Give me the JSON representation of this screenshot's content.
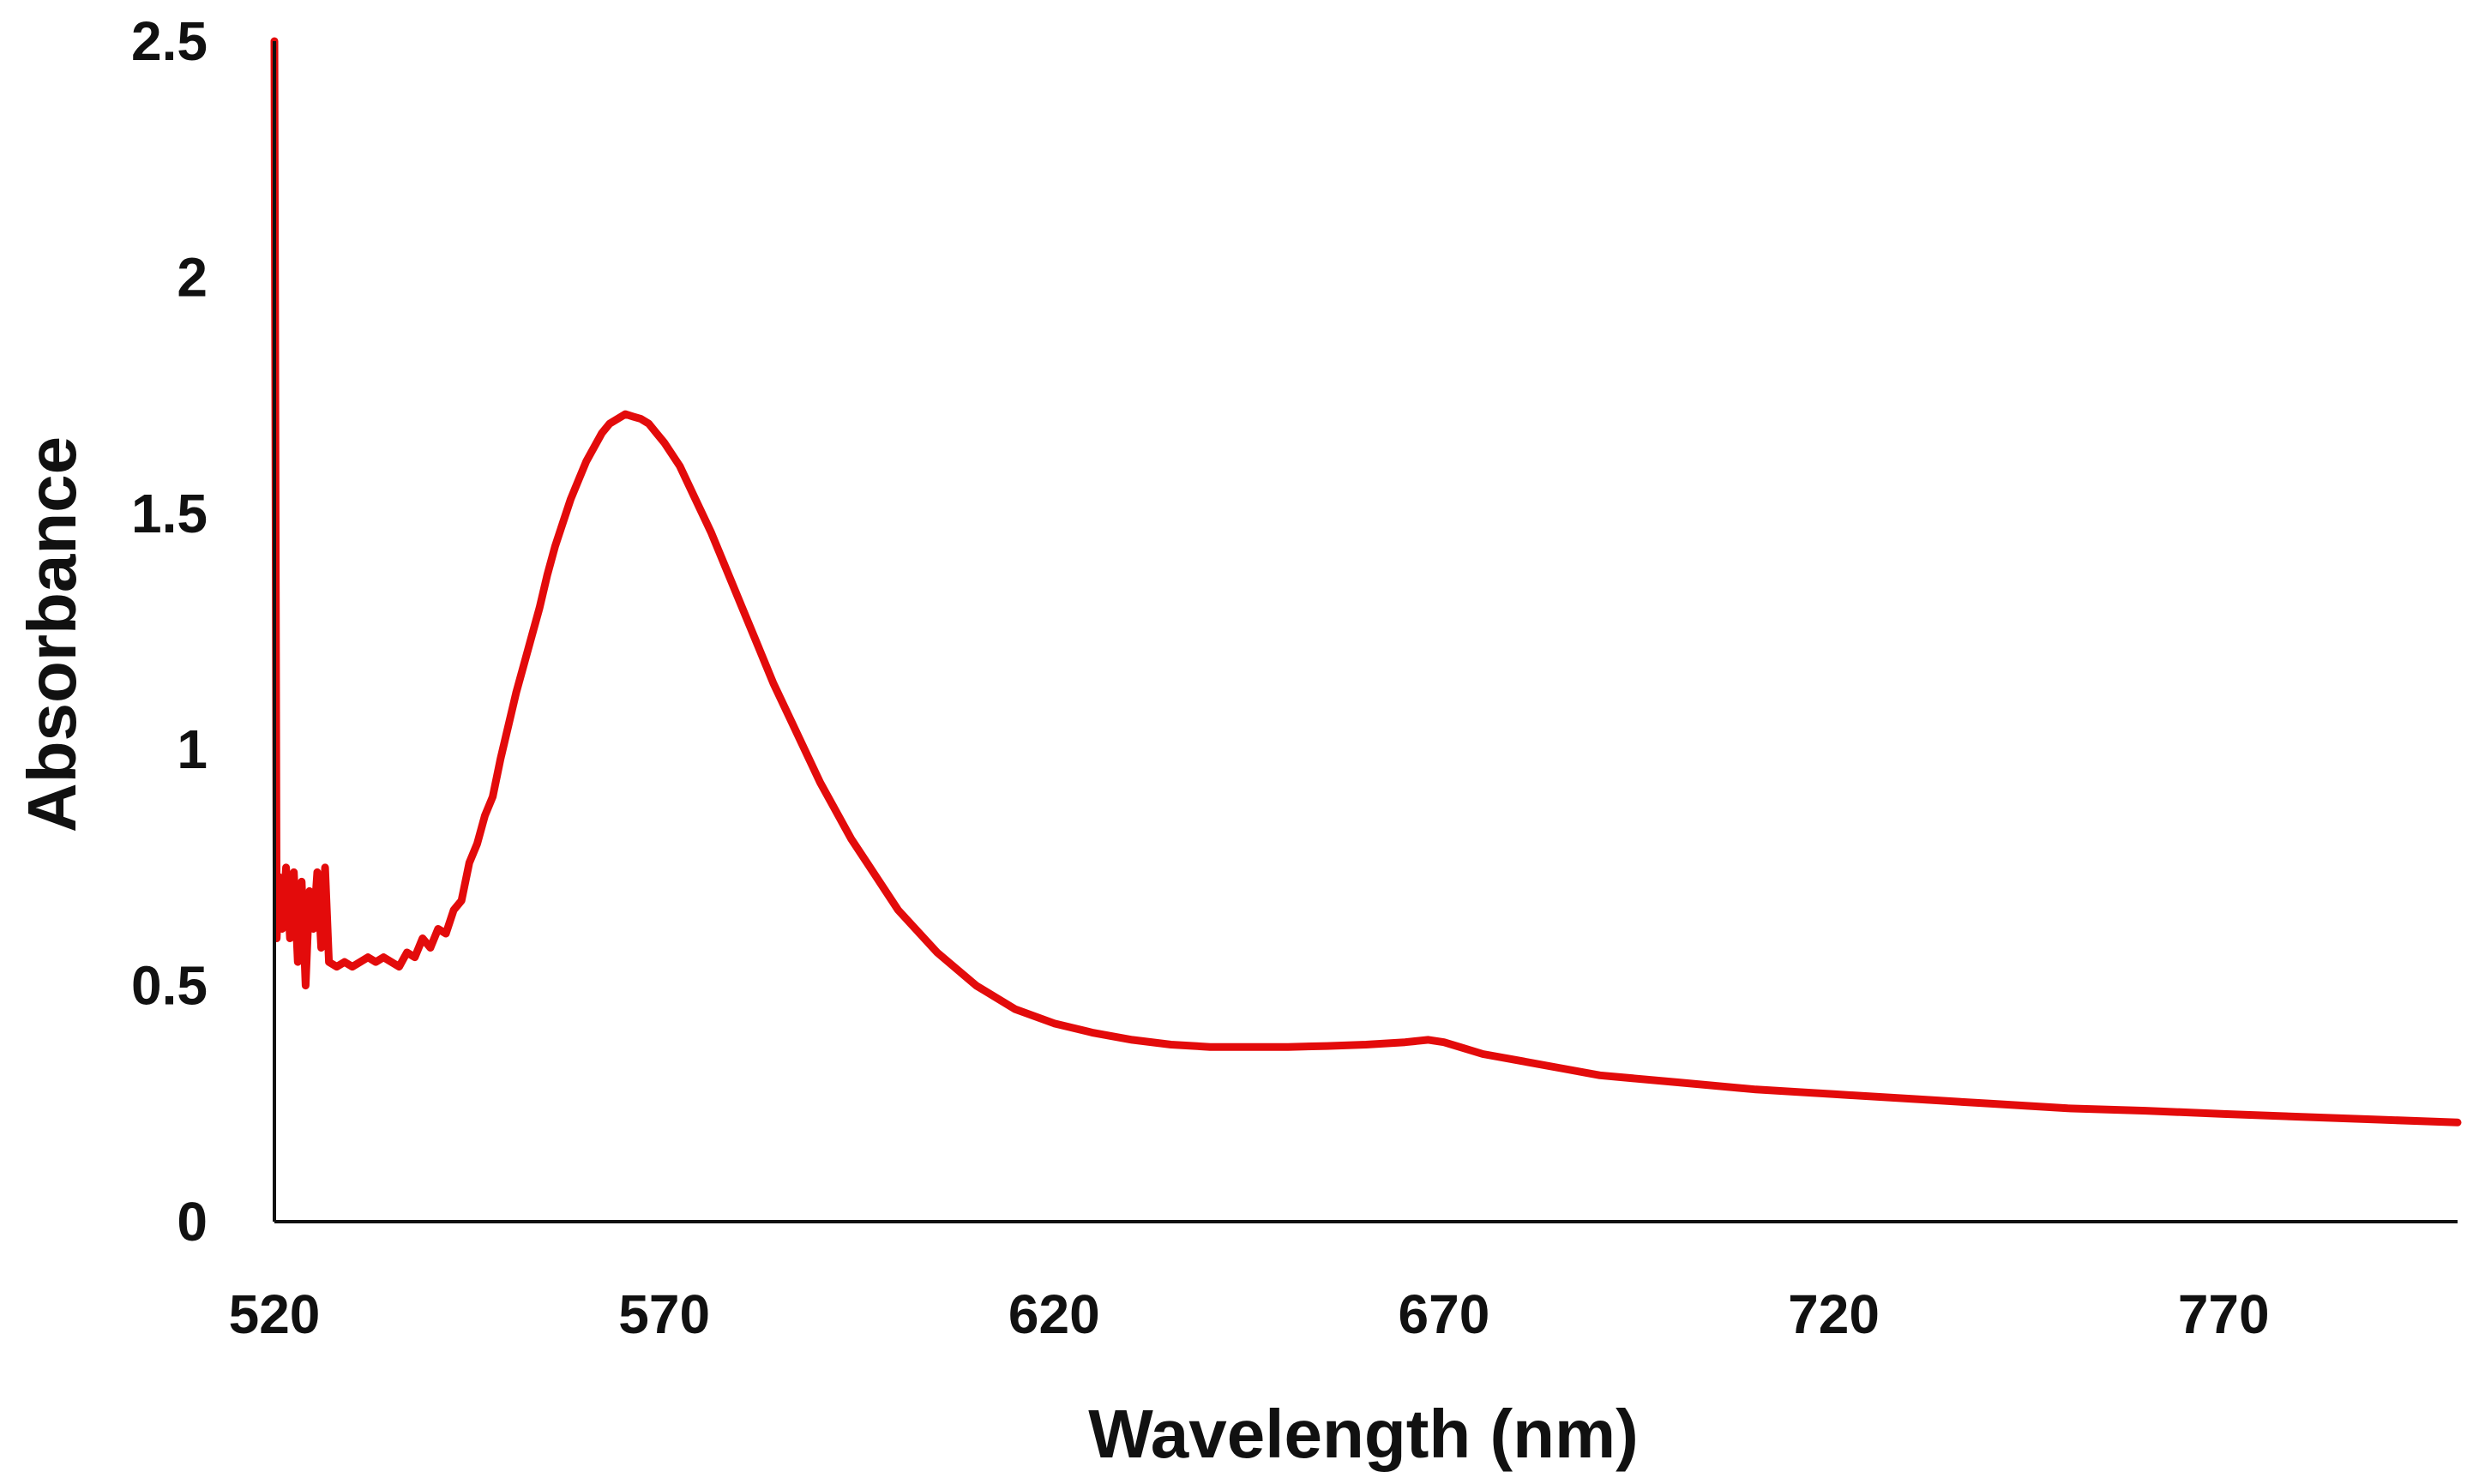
{
  "chart_data": {
    "type": "line",
    "title": "",
    "xlabel": "Wavelength (nm)",
    "ylabel": "Absorbance",
    "xlim": [
      520,
      800
    ],
    "ylim": [
      0,
      2.5
    ],
    "x_ticks": [
      "520",
      "570",
      "620",
      "670",
      "720",
      "770"
    ],
    "y_ticks": [
      "0",
      "0.5",
      "1",
      "1.5",
      "2",
      "2.5"
    ],
    "grid": false,
    "legend": "none",
    "colors": {
      "line": "#e30b0b",
      "axis": "#111111",
      "text": "#111111"
    },
    "series": [
      {
        "x": [
          520,
          520.3,
          520.6,
          521,
          521.5,
          522,
          522.5,
          523,
          523.5,
          524,
          524.5,
          525,
          525.5,
          526,
          526.5,
          527,
          528,
          529,
          530,
          531,
          532,
          533,
          534,
          535,
          536,
          537,
          538,
          539,
          540,
          541,
          542,
          543,
          544,
          545,
          546,
          547,
          548,
          549,
          550,
          551,
          552,
          553,
          554,
          555,
          556,
          557,
          558,
          559,
          560,
          561,
          562,
          563,
          564,
          565,
          566,
          567,
          568,
          569,
          570,
          572,
          574,
          576,
          578,
          580,
          582,
          584,
          586,
          588,
          590,
          592,
          594,
          596,
          598,
          600,
          605,
          610,
          615,
          620,
          625,
          630,
          635,
          640,
          645,
          650,
          655,
          660,
          665,
          668,
          670,
          672,
          675,
          680,
          685,
          690,
          700,
          710,
          720,
          730,
          740,
          750,
          760,
          770,
          780,
          790,
          800
        ],
        "y": [
          2.5,
          0.6,
          0.73,
          0.62,
          0.75,
          0.6,
          0.74,
          0.55,
          0.72,
          0.5,
          0.7,
          0.62,
          0.74,
          0.58,
          0.75,
          0.55,
          0.54,
          0.55,
          0.54,
          0.55,
          0.56,
          0.55,
          0.56,
          0.55,
          0.54,
          0.57,
          0.56,
          0.6,
          0.58,
          0.62,
          0.61,
          0.66,
          0.68,
          0.76,
          0.8,
          0.86,
          0.9,
          0.98,
          1.05,
          1.12,
          1.18,
          1.24,
          1.3,
          1.37,
          1.43,
          1.48,
          1.53,
          1.57,
          1.61,
          1.64,
          1.67,
          1.69,
          1.7,
          1.71,
          1.705,
          1.7,
          1.69,
          1.67,
          1.65,
          1.6,
          1.53,
          1.46,
          1.38,
          1.3,
          1.22,
          1.14,
          1.07,
          1.0,
          0.93,
          0.87,
          0.81,
          0.76,
          0.71,
          0.66,
          0.57,
          0.5,
          0.45,
          0.42,
          0.4,
          0.385,
          0.375,
          0.37,
          0.37,
          0.37,
          0.372,
          0.375,
          0.38,
          0.385,
          0.38,
          0.37,
          0.355,
          0.34,
          0.325,
          0.31,
          0.295,
          0.28,
          0.27,
          0.26,
          0.25,
          0.24,
          0.235,
          0.228,
          0.222,
          0.216,
          0.21
        ]
      }
    ]
  }
}
